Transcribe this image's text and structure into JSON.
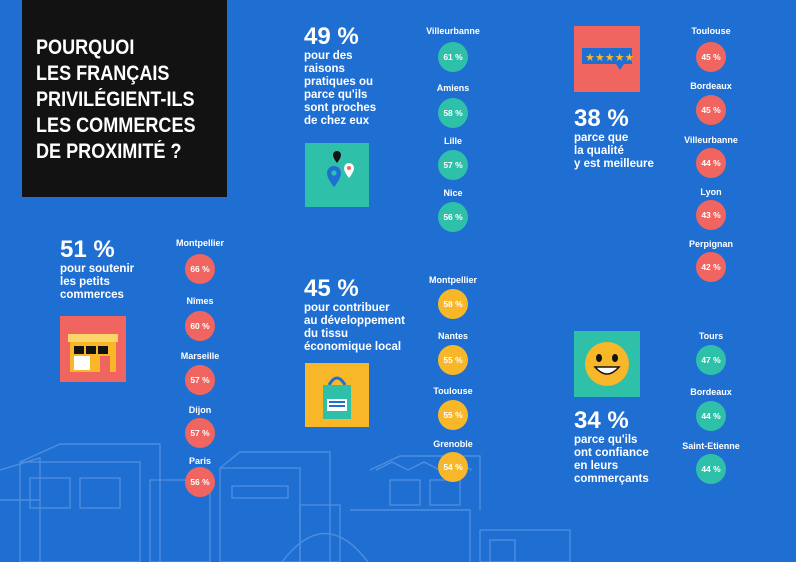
{
  "title": {
    "lines": [
      "POURQUOI",
      "LES FRANÇAIS",
      "PRIVILÉGIENT-ILS",
      "LES COMMERCES",
      "DE PROXIMITÉ ?"
    ]
  },
  "colors": {
    "background": "#1f6fd3",
    "title_box": "#121212",
    "teal": "#2ec0a8",
    "coral": "#f0655f",
    "yellow": "#f7b728"
  },
  "reasons": {
    "practical": {
      "pct": "49 %",
      "lines": [
        "pour des",
        "raisons",
        "pratiques ou",
        "parce qu'ils",
        "sont proches",
        "de chez eux"
      ],
      "icon": "map-pin-icon",
      "cities": [
        {
          "name": "Villeurbanne",
          "value": "61 %"
        },
        {
          "name": "Amiens",
          "value": "58 %"
        },
        {
          "name": "Lille",
          "value": "57 %"
        },
        {
          "name": "Nice",
          "value": "56 %"
        }
      ]
    },
    "quality": {
      "pct": "38 %",
      "lines": [
        "parce que",
        "la qualité",
        "y est meilleure"
      ],
      "icon": "five-star-review-icon",
      "cities": [
        {
          "name": "Toulouse",
          "value": "45 %"
        },
        {
          "name": "Bordeaux",
          "value": "45 %"
        },
        {
          "name": "Villeurbanne",
          "value": "44 %"
        },
        {
          "name": "Lyon",
          "value": "43 %"
        },
        {
          "name": "Perpignan",
          "value": "42 %"
        }
      ]
    },
    "small_shops": {
      "pct": "51 %",
      "lines": [
        "pour soutenir",
        "les petits",
        "commerces"
      ],
      "icon": "shop-storefront-icon",
      "cities": [
        {
          "name": "Montpellier",
          "value": "66 %"
        },
        {
          "name": "Nîmes",
          "value": "60 %"
        },
        {
          "name": "Marseille",
          "value": "57 %"
        },
        {
          "name": "Dijon",
          "value": "57 %"
        },
        {
          "name": "Paris",
          "value": "56 %"
        }
      ]
    },
    "local_economy": {
      "pct": "45 %",
      "lines": [
        "pour contribuer",
        "au développement",
        "du tissu",
        "économique local"
      ],
      "icon": "shopping-bag-icon",
      "cities": [
        {
          "name": "Montpellier",
          "value": "58 %"
        },
        {
          "name": "Nantes",
          "value": "55 %"
        },
        {
          "name": "Toulouse",
          "value": "55 %"
        },
        {
          "name": "Grenoble",
          "value": "54 %"
        }
      ]
    },
    "trust": {
      "pct": "34 %",
      "lines": [
        "parce qu'ils",
        "ont confiance",
        "en leurs",
        "commerçants"
      ],
      "icon": "smiley-face-icon",
      "cities": [
        {
          "name": "Tours",
          "value": "47 %"
        },
        {
          "name": "Bordeaux",
          "value": "44 %"
        },
        {
          "name": "Saint-Etienne",
          "value": "44 %"
        }
      ]
    }
  }
}
